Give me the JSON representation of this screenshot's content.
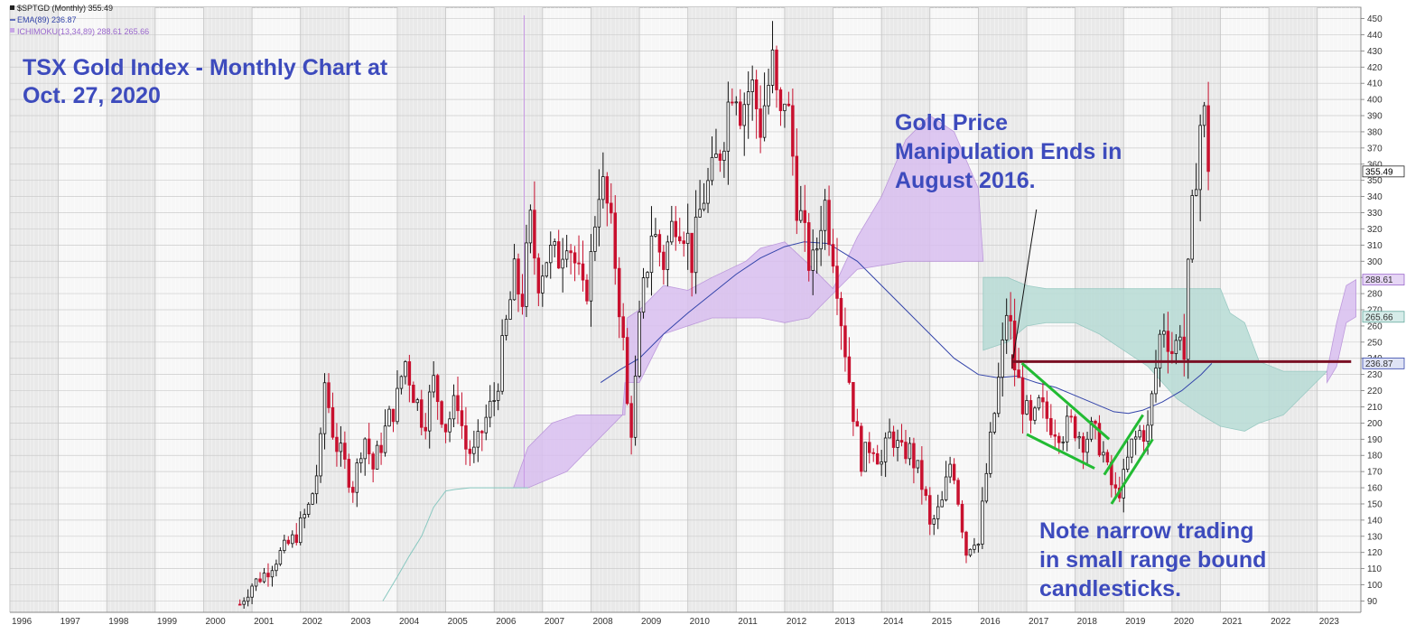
{
  "chart_data": {
    "type": "candlestick",
    "ticker_legend": [
      {
        "text": "$SPTGD (Monthly) 355.49",
        "color": "#222222"
      },
      {
        "text": "EMA(89) 236.87",
        "color": "#3344aa"
      },
      {
        "text": "ICHIMOKU(13,34,89) 288.61 265.66",
        "color": "#9966cc"
      }
    ],
    "annotations": {
      "title_line1": "TSX Gold Index - Monthly Chart at",
      "title_line2": "Oct. 27, 2020",
      "gold_line1": "Gold Price",
      "gold_line2": "Manipulation Ends in",
      "gold_line3": "August 2016.",
      "note_line1": "Note narrow trading",
      "note_line2": "in small range bound",
      "note_line3": "candlesticks."
    },
    "x_ticks": [
      "1996",
      "1997",
      "1998",
      "1999",
      "2000",
      "2001",
      "2002",
      "2003",
      "2004",
      "2005",
      "2006",
      "2007",
      "2008",
      "2009",
      "2010",
      "2011",
      "2012",
      "2013",
      "2014",
      "2015",
      "2016",
      "2017",
      "2018",
      "2019",
      "2020",
      "2021",
      "2022",
      "2023"
    ],
    "x_range": [
      1996,
      2023.9
    ],
    "y_ticks": [
      90,
      100,
      110,
      120,
      130,
      140,
      150,
      160,
      170,
      180,
      190,
      200,
      210,
      220,
      230,
      240,
      250,
      260,
      270,
      280,
      290,
      300,
      310,
      320,
      330,
      340,
      350,
      360,
      370,
      380,
      390,
      400,
      410,
      420,
      430,
      440,
      450
    ],
    "y_range": [
      83,
      457
    ],
    "value_badges": [
      {
        "text": "355.49",
        "value": 355.49,
        "style": "dark"
      },
      {
        "text": "288.61",
        "value": 288.61,
        "style": "purple"
      },
      {
        "text": "265.66",
        "value": 265.66,
        "style": "teal"
      },
      {
        "text": "236.87",
        "value": 236.87,
        "style": "blue"
      }
    ],
    "price_path": [
      [
        2000.75,
        88
      ],
      [
        2001.0,
        100
      ],
      [
        2001.3,
        108
      ],
      [
        2001.6,
        120
      ],
      [
        2001.9,
        130
      ],
      [
        2002.2,
        150
      ],
      [
        2002.4,
        178
      ],
      [
        2002.5,
        225
      ],
      [
        2002.7,
        190
      ],
      [
        2002.9,
        175
      ],
      [
        2003.1,
        160
      ],
      [
        2003.3,
        195
      ],
      [
        2003.5,
        172
      ],
      [
        2003.8,
        200
      ],
      [
        2004.0,
        215
      ],
      [
        2004.15,
        240
      ],
      [
        2004.35,
        218
      ],
      [
        2004.55,
        200
      ],
      [
        2004.75,
        225
      ],
      [
        2005.0,
        198
      ],
      [
        2005.25,
        215
      ],
      [
        2005.4,
        185
      ],
      [
        2005.6,
        180
      ],
      [
        2005.8,
        200
      ],
      [
        2006.0,
        215
      ],
      [
        2006.15,
        240
      ],
      [
        2006.3,
        270
      ],
      [
        2006.45,
        295
      ],
      [
        2006.55,
        270
      ],
      [
        2006.75,
        322
      ],
      [
        2006.9,
        290
      ],
      [
        2007.1,
        305
      ],
      [
        2007.3,
        300
      ],
      [
        2007.5,
        320
      ],
      [
        2007.7,
        295
      ],
      [
        2007.85,
        275
      ],
      [
        2008.0,
        300
      ],
      [
        2008.15,
        350
      ],
      [
        2008.3,
        340
      ],
      [
        2008.5,
        300
      ],
      [
        2008.65,
        255
      ],
      [
        2008.75,
        210
      ],
      [
        2008.85,
        195
      ],
      [
        2009.0,
        260
      ],
      [
        2009.25,
        320
      ],
      [
        2009.5,
        300
      ],
      [
        2009.75,
        330
      ],
      [
        2009.9,
        325
      ],
      [
        2010.1,
        300
      ],
      [
        2010.3,
        340
      ],
      [
        2010.5,
        350
      ],
      [
        2010.7,
        375
      ],
      [
        2010.85,
        400
      ],
      [
        2010.95,
        420
      ],
      [
        2011.1,
        395
      ],
      [
        2011.3,
        410
      ],
      [
        2011.5,
        385
      ],
      [
        2011.6,
        400
      ],
      [
        2011.75,
        420
      ],
      [
        2011.9,
        380
      ],
      [
        2012.0,
        405
      ],
      [
        2012.1,
        385
      ],
      [
        2012.25,
        340
      ],
      [
        2012.45,
        305
      ],
      [
        2012.6,
        295
      ],
      [
        2012.8,
        340
      ],
      [
        2012.9,
        325
      ],
      [
        2013.05,
        300
      ],
      [
        2013.15,
        270
      ],
      [
        2013.3,
        235
      ],
      [
        2013.45,
        200
      ],
      [
        2013.6,
        175
      ],
      [
        2013.8,
        190
      ],
      [
        2014.0,
        175
      ],
      [
        2014.2,
        195
      ],
      [
        2014.4,
        180
      ],
      [
        2014.55,
        185
      ],
      [
        2014.75,
        170
      ],
      [
        2014.9,
        155
      ],
      [
        2015.0,
        135
      ],
      [
        2015.25,
        150
      ],
      [
        2015.45,
        180
      ],
      [
        2015.55,
        160
      ],
      [
        2015.75,
        120
      ],
      [
        2015.9,
        130
      ],
      [
        2016.0,
        125
      ],
      [
        2016.15,
        165
      ],
      [
        2016.35,
        210
      ],
      [
        2016.5,
        245
      ],
      [
        2016.6,
        275
      ],
      [
        2016.75,
        235
      ],
      [
        2016.9,
        215
      ],
      [
        2017.1,
        195
      ],
      [
        2017.25,
        210
      ],
      [
        2017.5,
        200
      ],
      [
        2017.75,
        195
      ],
      [
        2017.95,
        200
      ],
      [
        2018.15,
        190
      ],
      [
        2018.35,
        195
      ],
      [
        2018.55,
        185
      ],
      [
        2018.7,
        165
      ],
      [
        2018.85,
        155
      ],
      [
        2019.0,
        165
      ],
      [
        2019.15,
        185
      ],
      [
        2019.35,
        195
      ],
      [
        2019.5,
        195
      ],
      [
        2019.65,
        230
      ],
      [
        2019.8,
        265
      ],
      [
        2019.95,
        250
      ],
      [
        2020.05,
        240
      ],
      [
        2020.15,
        265
      ],
      [
        2020.25,
        240
      ],
      [
        2020.35,
        300
      ],
      [
        2020.5,
        360
      ],
      [
        2020.6,
        390
      ],
      [
        2020.72,
        385
      ],
      [
        2020.82,
        355.49
      ]
    ],
    "ema89": [
      [
        2008.2,
        225
      ],
      [
        2008.6,
        233
      ],
      [
        2009.0,
        240
      ],
      [
        2009.5,
        255
      ],
      [
        2010.0,
        268
      ],
      [
        2010.5,
        280
      ],
      [
        2011.0,
        292
      ],
      [
        2011.5,
        302
      ],
      [
        2012.0,
        309
      ],
      [
        2012.4,
        312
      ],
      [
        2012.9,
        311
      ],
      [
        2013.5,
        300
      ],
      [
        2014.0,
        285
      ],
      [
        2014.5,
        270
      ],
      [
        2015.0,
        255
      ],
      [
        2015.5,
        240
      ],
      [
        2016.0,
        230
      ],
      [
        2016.4,
        228
      ],
      [
        2016.8,
        229
      ],
      [
        2017.2,
        225
      ],
      [
        2017.6,
        222
      ],
      [
        2018.0,
        217
      ],
      [
        2018.4,
        212
      ],
      [
        2018.8,
        207
      ],
      [
        2019.1,
        206
      ],
      [
        2019.4,
        208
      ],
      [
        2019.8,
        213
      ],
      [
        2020.2,
        220
      ],
      [
        2020.6,
        230
      ],
      [
        2020.82,
        236.87
      ]
    ],
    "cloud_purple": {
      "upper": [
        [
          2006.4,
          160
        ],
        [
          2006.7,
          185
        ],
        [
          2007.2,
          200
        ],
        [
          2007.7,
          205
        ],
        [
          2008.7,
          205
        ],
        [
          2008.75,
          265
        ],
        [
          2009.0,
          270
        ],
        [
          2009.5,
          285
        ],
        [
          2010.0,
          282
        ],
        [
          2010.5,
          290
        ],
        [
          2011.2,
          300
        ],
        [
          2011.5,
          308
        ],
        [
          2012.0,
          312
        ],
        [
          2012.5,
          298
        ],
        [
          2013.0,
          283
        ],
        [
          2013.5,
          315
        ],
        [
          2014.0,
          340
        ],
        [
          2014.5,
          375
        ],
        [
          2015.0,
          390
        ],
        [
          2015.5,
          380
        ],
        [
          2016.0,
          345
        ],
        [
          2016.1,
          300
        ]
      ],
      "lower": [
        [
          2016.1,
          300
        ],
        [
          2014.5,
          300
        ],
        [
          2013.5,
          295
        ],
        [
          2013.0,
          280
        ],
        [
          2012.5,
          265
        ],
        [
          2012.0,
          262
        ],
        [
          2011.5,
          265
        ],
        [
          2010.5,
          265
        ],
        [
          2010.0,
          260
        ],
        [
          2009.5,
          255
        ],
        [
          2009.0,
          225
        ],
        [
          2008.7,
          225
        ],
        [
          2008.65,
          205
        ],
        [
          2007.5,
          170
        ],
        [
          2006.7,
          160
        ],
        [
          2006.4,
          160
        ]
      ]
    },
    "cloud_teal": {
      "upper": [
        [
          2016.1,
          290
        ],
        [
          2016.6,
          290
        ],
        [
          2017.0,
          285
        ],
        [
          2017.4,
          283
        ],
        [
          2018.0,
          283
        ],
        [
          2018.5,
          283
        ],
        [
          2019.0,
          283
        ],
        [
          2019.5,
          283
        ],
        [
          2020.1,
          283
        ],
        [
          2020.6,
          283
        ],
        [
          2021.0,
          283
        ],
        [
          2021.2,
          268
        ],
        [
          2021.5,
          262
        ],
        [
          2021.8,
          238
        ],
        [
          2022.3,
          232
        ],
        [
          2022.8,
          232
        ],
        [
          2023.2,
          232
        ]
      ],
      "lower": [
        [
          2023.2,
          232
        ],
        [
          2022.8,
          220
        ],
        [
          2022.3,
          205
        ],
        [
          2021.8,
          200
        ],
        [
          2021.5,
          195
        ],
        [
          2021.0,
          198
        ],
        [
          2020.6,
          205
        ],
        [
          2020.1,
          215
        ],
        [
          2019.8,
          225
        ],
        [
          2019.5,
          235
        ],
        [
          2019.0,
          245
        ],
        [
          2018.5,
          255
        ],
        [
          2018.0,
          262
        ],
        [
          2017.4,
          262
        ],
        [
          2017.0,
          260
        ],
        [
          2016.6,
          250
        ],
        [
          2016.1,
          245
        ]
      ]
    },
    "cloud_purple_future": {
      "upper": [
        [
          2023.2,
          232
        ],
        [
          2023.4,
          262
        ],
        [
          2023.6,
          285
        ],
        [
          2023.8,
          288.61
        ]
      ],
      "lower": [
        [
          2023.8,
          265.66
        ],
        [
          2023.6,
          262
        ],
        [
          2023.4,
          235
        ],
        [
          2023.2,
          225
        ]
      ]
    },
    "lagging_line": [
      [
        2003.7,
        90
      ],
      [
        2004.0,
        105
      ],
      [
        2004.25,
        118
      ],
      [
        2004.5,
        130
      ],
      [
        2004.75,
        148
      ],
      [
        2005.0,
        158
      ],
      [
        2005.2,
        159
      ],
      [
        2005.5,
        160
      ],
      [
        2006.0,
        160
      ],
      [
        2006.5,
        160
      ],
      [
        2006.7,
        160
      ]
    ],
    "resistance_level": {
      "value": 238,
      "x_start": 2016.7,
      "x_end": 2023.7
    },
    "green_trendlines": [
      [
        [
          2016.9,
          237
        ],
        [
          2018.7,
          190
        ]
      ],
      [
        [
          2017.0,
          193
        ],
        [
          2018.4,
          172
        ]
      ],
      [
        [
          2018.6,
          168
        ],
        [
          2019.4,
          205
        ]
      ],
      [
        [
          2018.75,
          150
        ],
        [
          2019.6,
          190
        ]
      ]
    ],
    "pointer_line": [
      [
        2016.72,
        240
      ],
      [
        2017.2,
        332
      ]
    ]
  }
}
